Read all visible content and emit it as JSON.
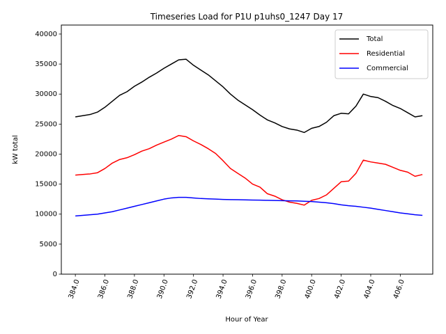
{
  "chart_data": {
    "type": "line",
    "title": "Timeseries Load for P1U p1uhs0_1247  Day 17",
    "xlabel": "Hour of Year",
    "ylabel": "kW total",
    "xlim": [
      383.05,
      408.2
    ],
    "ylim": [
      0,
      41500
    ],
    "xticks": [
      384,
      386,
      388,
      390,
      392,
      394,
      396,
      398,
      400,
      402,
      404,
      406
    ],
    "xtick_labels": [
      "384.0",
      "386.0",
      "388.0",
      "390.0",
      "392.0",
      "394.0",
      "396.0",
      "398.0",
      "400.0",
      "402.0",
      "404.0",
      "406.0"
    ],
    "yticks": [
      0,
      5000,
      10000,
      15000,
      20000,
      25000,
      30000,
      35000,
      40000
    ],
    "ytick_labels": [
      "0",
      "5000",
      "10000",
      "15000",
      "20000",
      "25000",
      "30000",
      "35000",
      "40000"
    ],
    "legend_position": "top-right",
    "grid": false,
    "series": [
      {
        "name": "Total",
        "color": "#000000",
        "x": [
          384,
          384.5,
          385,
          385.5,
          386,
          386.5,
          387,
          387.5,
          388,
          388.5,
          389,
          389.5,
          390,
          390.5,
          391,
          391.5,
          392,
          392.5,
          393,
          393.5,
          394,
          394.5,
          395,
          395.5,
          396,
          396.5,
          397,
          397.5,
          398,
          398.5,
          399,
          399.5,
          400,
          400.5,
          401,
          401.5,
          402,
          402.5,
          403,
          403.5,
          404,
          404.5,
          405,
          405.5,
          406,
          406.5,
          407,
          407.5
        ],
        "values": [
          26200,
          26400,
          26600,
          27000,
          27800,
          28800,
          29800,
          30400,
          31300,
          32000,
          32800,
          33500,
          34300,
          35000,
          35700,
          35800,
          34800,
          34000,
          33200,
          32200,
          31200,
          30000,
          29000,
          28200,
          27400,
          26500,
          25700,
          25200,
          24600,
          24200,
          24000,
          23600,
          24300,
          24600,
          25300,
          26400,
          26800,
          26700,
          28000,
          30000,
          29600,
          29400,
          28800,
          28100,
          27600,
          26900,
          26200,
          26400
        ]
      },
      {
        "name": "Residential",
        "color": "#ff0000",
        "x": [
          384,
          384.5,
          385,
          385.5,
          386,
          386.5,
          387,
          387.5,
          388,
          388.5,
          389,
          389.5,
          390,
          390.5,
          391,
          391.5,
          392,
          392.5,
          393,
          393.5,
          394,
          394.5,
          395,
          395.5,
          396,
          396.5,
          397,
          397.5,
          398,
          398.5,
          399,
          399.5,
          400,
          400.5,
          401,
          401.5,
          402,
          402.5,
          403,
          403.5,
          404,
          404.5,
          405,
          405.5,
          406,
          406.5,
          407,
          407.5
        ],
        "values": [
          16500,
          16600,
          16700,
          16900,
          17600,
          18500,
          19100,
          19400,
          19900,
          20500,
          20900,
          21500,
          22000,
          22500,
          23100,
          22900,
          22200,
          21600,
          20900,
          20100,
          18900,
          17600,
          16800,
          16000,
          15000,
          14500,
          13400,
          13000,
          12400,
          12000,
          11800,
          11500,
          12300,
          12600,
          13200,
          14300,
          15400,
          15500,
          16800,
          19000,
          18700,
          18500,
          18300,
          17800,
          17300,
          17000,
          16300,
          16600
        ]
      },
      {
        "name": "Commercial",
        "color": "#0000ff",
        "x": [
          384,
          384.5,
          385,
          385.5,
          386,
          386.5,
          387,
          387.5,
          388,
          388.5,
          389,
          389.5,
          390,
          390.5,
          391,
          391.5,
          392,
          392.5,
          393,
          393.5,
          394,
          394.5,
          395,
          395.5,
          396,
          396.5,
          397,
          397.5,
          398,
          398.5,
          399,
          399.5,
          400,
          400.5,
          401,
          401.5,
          402,
          402.5,
          403,
          403.5,
          404,
          404.5,
          405,
          405.5,
          406,
          406.5,
          407,
          407.5
        ],
        "values": [
          9700,
          9800,
          9900,
          10000,
          10200,
          10400,
          10700,
          11000,
          11300,
          11600,
          11900,
          12200,
          12500,
          12700,
          12800,
          12800,
          12700,
          12600,
          12550,
          12500,
          12450,
          12420,
          12400,
          12380,
          12350,
          12330,
          12300,
          12280,
          12250,
          12220,
          12200,
          12150,
          12100,
          12000,
          11900,
          11750,
          11550,
          11400,
          11300,
          11150,
          11000,
          10800,
          10600,
          10400,
          10200,
          10050,
          9900,
          9800
        ]
      }
    ]
  }
}
